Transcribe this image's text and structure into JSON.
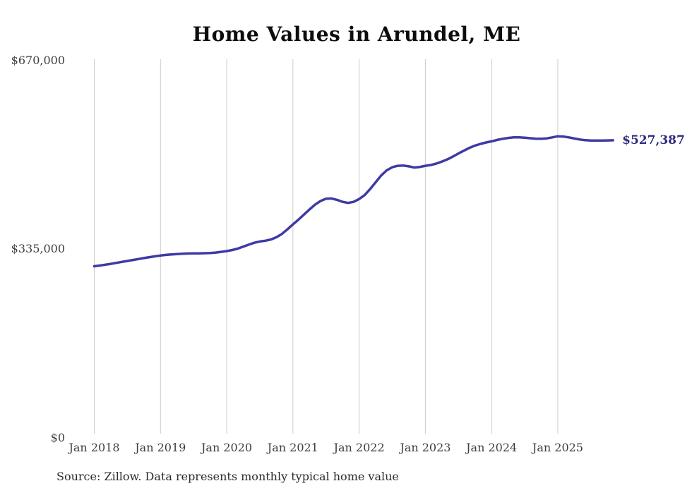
{
  "title": "Home Values in Arundel, ME",
  "source_note": "Source: Zillow. Data represents monthly typical home value",
  "end_label": "$527,387",
  "colors": {
    "line": "#3f3aa3",
    "end_label_text": "#2d2a7e",
    "grid": "#cccccc",
    "axis_text": "#3d3d3d",
    "title_text": "#0d0d0d",
    "background": "#ffffff"
  },
  "chart_data": {
    "type": "line",
    "title": "Home Values in Arundel, ME",
    "xlabel": "",
    "ylabel": "",
    "x_unit": "month",
    "x_start": "2018-01",
    "x_end": "2025-11",
    "grid": "vertical-only",
    "legend_position": "none",
    "ylim": [
      0,
      670000
    ],
    "y_axis_ticks": [
      {
        "value": 0,
        "label": "$0"
      },
      {
        "value": 335000,
        "label": "$335,000"
      },
      {
        "value": 670000,
        "label": "$670,000"
      }
    ],
    "x_axis_tick_labels": [
      "Jan 2018",
      "Jan 2019",
      "Jan 2020",
      "Jan 2021",
      "Jan 2022",
      "Jan 2023",
      "Jan 2024",
      "Jan 2025"
    ],
    "series": [
      {
        "name": "Monthly typical home value",
        "end_label": "$527,387",
        "final_value": 527387,
        "values": [
          303700,
          305000,
          306400,
          308000,
          309700,
          311400,
          313100,
          314800,
          316500,
          318200,
          319900,
          321400,
          322700,
          323800,
          324700,
          325400,
          325900,
          326300,
          326500,
          326600,
          326800,
          327200,
          328000,
          329200,
          330600,
          332500,
          335000,
          338500,
          342000,
          345400,
          347700,
          349000,
          351200,
          355200,
          361000,
          369200,
          378000,
          386500,
          395500,
          404500,
          413000,
          419500,
          423500,
          424000,
          421500,
          418000,
          416200,
          418000,
          423000,
          430000,
          441000,
          453000,
          465000,
          474000,
          479500,
          482000,
          482500,
          481000,
          479000,
          480000,
          482000,
          483500,
          486000,
          489500,
          493500,
          498500,
          504000,
          509000,
          514000,
          518000,
          521000,
          523500,
          525500,
          528000,
          530000,
          531500,
          532500,
          532500,
          532000,
          531000,
          530200,
          530000,
          530800,
          532500,
          534500,
          534000,
          532500,
          530500,
          528700,
          527500,
          527000,
          526800,
          526900,
          527100,
          527387
        ]
      }
    ]
  }
}
